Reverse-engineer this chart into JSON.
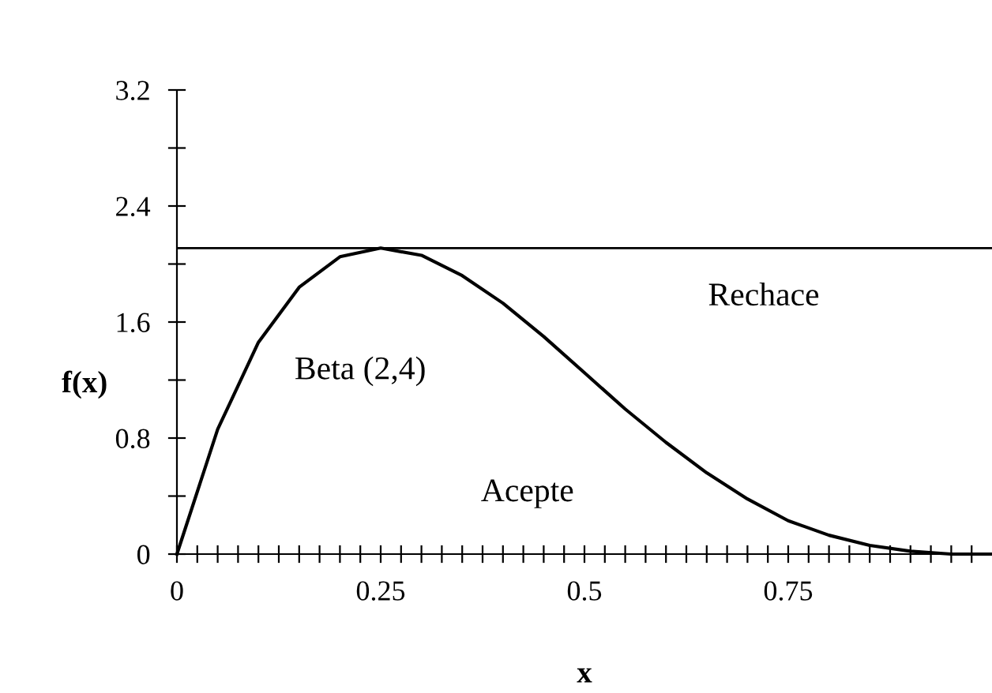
{
  "chart_data": {
    "type": "line",
    "xlabel": "x",
    "ylabel": "f(x)",
    "x": [
      0,
      0.05,
      0.1,
      0.15,
      0.2,
      0.25,
      0.3,
      0.35,
      0.4,
      0.45,
      0.5,
      0.55,
      0.6,
      0.65,
      0.7,
      0.75,
      0.8,
      0.85,
      0.9,
      0.95,
      1.0
    ],
    "series": [
      {
        "color": "#000000",
        "values": [
          0,
          0.86,
          1.46,
          1.84,
          2.05,
          2.11,
          2.06,
          1.92,
          1.73,
          1.5,
          1.25,
          1.0,
          0.77,
          0.56,
          0.38,
          0.23,
          0.13,
          0.06,
          0.02,
          0.0,
          0
        ]
      }
    ],
    "xlim": [
      0,
      1
    ],
    "xticks": [
      0,
      {
        "value": 0.025,
        "label": null
      },
      {
        "value": 0.05,
        "label": null
      },
      {
        "value": 0.075,
        "label": null
      },
      {
        "value": 0.1,
        "label": null
      },
      {
        "value": 0.125,
        "label": null
      },
      {
        "value": 0.15,
        "label": null
      },
      {
        "value": 0.175,
        "label": null
      },
      {
        "value": 0.2,
        "label": null
      },
      {
        "value": 0.225,
        "label": null
      },
      0.25,
      {
        "value": 0.275,
        "label": null
      },
      {
        "value": 0.3,
        "label": null
      },
      {
        "value": 0.325,
        "label": null
      },
      {
        "value": 0.35,
        "label": null
      },
      {
        "value": 0.375,
        "label": null
      },
      {
        "value": 0.4,
        "label": null
      },
      {
        "value": 0.425,
        "label": null
      },
      {
        "value": 0.45,
        "label": null
      },
      {
        "value": 0.475,
        "label": null
      },
      0.5,
      {
        "value": 0.525,
        "label": null
      },
      {
        "value": 0.55,
        "label": null
      },
      {
        "value": 0.575,
        "label": null
      },
      {
        "value": 0.6,
        "label": null
      },
      {
        "value": 0.625,
        "label": null
      },
      {
        "value": 0.65,
        "label": null
      },
      {
        "value": 0.675,
        "label": null
      },
      {
        "value": 0.7,
        "label": null
      },
      {
        "value": 0.725,
        "label": null
      },
      0.75,
      {
        "value": 0.775,
        "label": null
      },
      {
        "value": 0.8,
        "label": null
      },
      {
        "value": 0.825,
        "label": null
      },
      {
        "value": 0.85,
        "label": null
      },
      {
        "value": 0.875,
        "label": null
      },
      {
        "value": 0.9,
        "label": null
      },
      {
        "value": 0.925,
        "label": null
      },
      {
        "value": 0.95,
        "label": null
      },
      {
        "value": 0.975,
        "label": null
      }
    ],
    "ylim": [
      0,
      3.2
    ],
    "yticks": [
      0,
      {
        "value": 0.4,
        "label": null
      },
      0.8,
      {
        "value": 1.2,
        "label": null
      },
      1.6,
      {
        "value": 2.0,
        "label": null
      },
      2.4,
      {
        "value": 2.8,
        "label": null
      },
      3.2
    ],
    "ref_lines": [
      {
        "axis": "y",
        "value": 2.11,
        "color": "#000000"
      }
    ],
    "annotations": [
      "Beta (2,4)",
      "Rechace",
      "Acepte"
    ],
    "grid": false,
    "legend": false,
    "marker": "none",
    "line_style": "solid"
  }
}
